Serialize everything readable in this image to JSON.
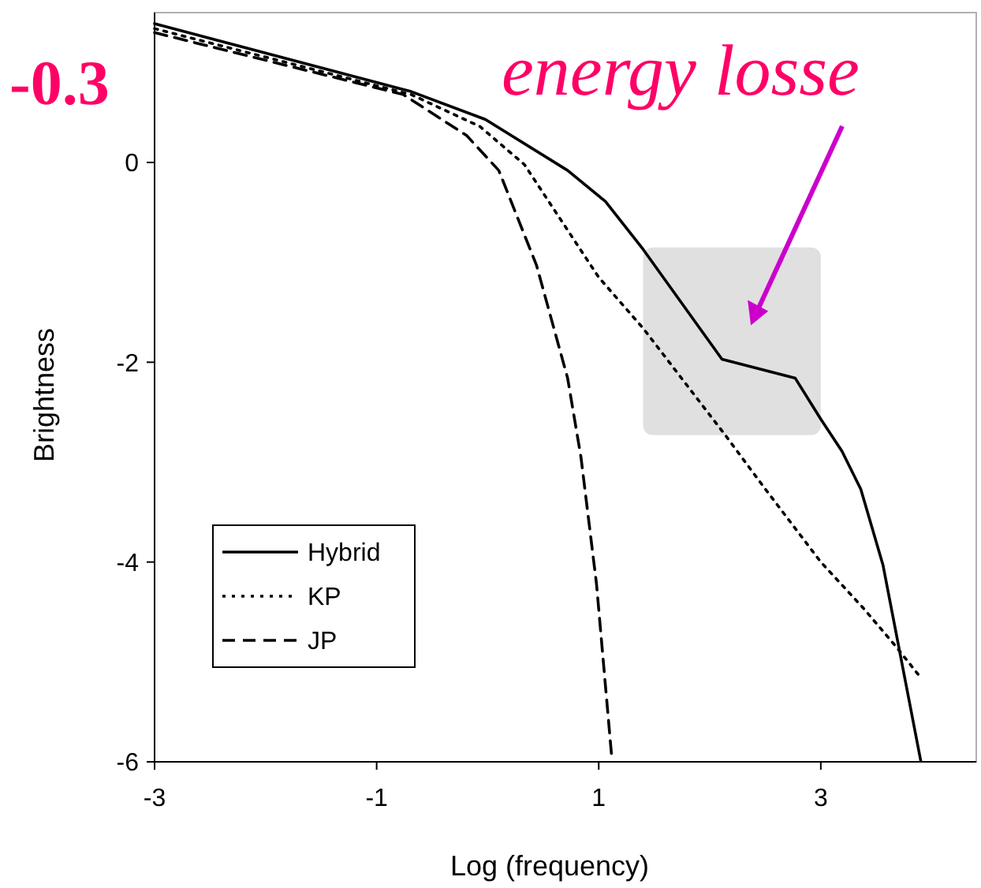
{
  "chart_data": {
    "type": "line",
    "xlabel": "Log (frequency)",
    "ylabel": "Brightness",
    "annotations": [
      "-0.3",
      "energy losse"
    ],
    "xlim": [
      -3,
      4.4
    ],
    "xticks": [
      -3,
      -1,
      1,
      3
    ],
    "ylim": [
      -6,
      1.5
    ],
    "yticks": [
      -6,
      -4,
      -2,
      0
    ],
    "grid": false,
    "legend": "bottom left",
    "series": [
      {
        "name": "Hybrid",
        "color": "#000000",
        "line_style": "solid",
        "x": [
          -3,
          -0.69,
          -0.02,
          0.72,
          1.06,
          1.4,
          2.11,
          2.77,
          3.0,
          3.19,
          3.36,
          3.56,
          3.9
        ],
        "values": [
          1.39,
          0.71,
          0.43,
          -0.08,
          -0.39,
          -0.87,
          -1.97,
          -2.16,
          -2.57,
          -2.89,
          -3.27,
          -4.03,
          -5.99
        ]
      },
      {
        "name": "KP",
        "color": "#000000",
        "line_style": "dotted",
        "x": [
          -3,
          -0.69,
          -0.07,
          0.33,
          1.0,
          1.4,
          2.14,
          2.48,
          3.0,
          3.39,
          3.68,
          3.88
        ],
        "values": [
          1.34,
          0.68,
          0.36,
          -0.02,
          -1.15,
          -1.66,
          -2.73,
          -3.24,
          -4.0,
          -4.47,
          -4.85,
          -5.13
        ]
      },
      {
        "name": "JP",
        "color": "#000000",
        "line_style": "dashed",
        "x": [
          -3,
          -0.76,
          -0.19,
          0.1,
          0.44,
          0.72,
          0.84,
          0.98,
          1.12
        ],
        "values": [
          1.3,
          0.68,
          0.27,
          -0.08,
          -1.03,
          -2.16,
          -2.95,
          -4.22,
          -5.99
        ]
      }
    ]
  }
}
